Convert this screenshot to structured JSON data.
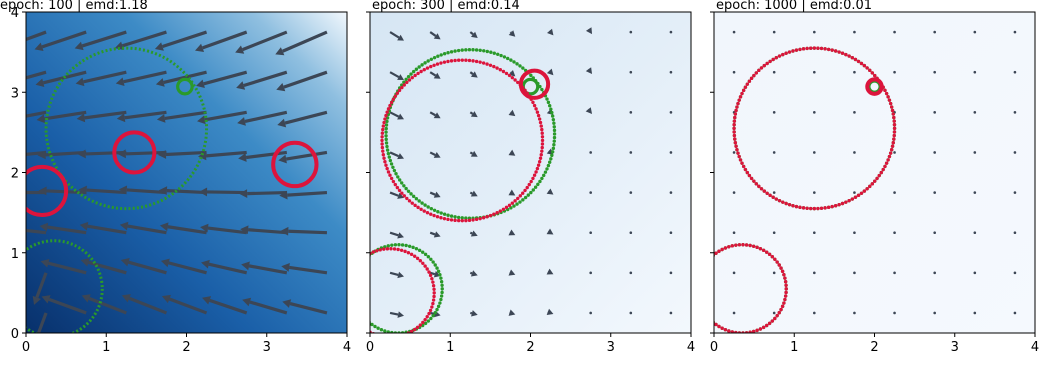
{
  "chart_data": [
    {
      "type": "quiver",
      "title": "epoch: 100 | emd:1.18",
      "xlim": [
        0,
        4
      ],
      "ylim": [
        0,
        4
      ],
      "xticks": [
        "0",
        "1",
        "2",
        "3",
        "4"
      ],
      "yticks": [
        "0",
        "1",
        "2",
        "3",
        "4"
      ],
      "background": "blue gradient (dark lower-left, light upper-right)",
      "circles_green": [
        {
          "cx": 1.25,
          "cy": 2.55,
          "r": 1.0
        },
        {
          "cx": 1.98,
          "cy": 3.07,
          "r": 0.09
        },
        {
          "cx": 0.35,
          "cy": 0.55,
          "r": 0.6
        }
      ],
      "circles_red": [
        {
          "cx": 1.35,
          "cy": 2.25,
          "r": 0.25
        },
        {
          "cx": 3.35,
          "cy": 2.1,
          "r": 0.27
        },
        {
          "cx": 0.2,
          "cy": 1.77,
          "r": 0.3
        }
      ],
      "arrow_scale": "large"
    },
    {
      "type": "quiver",
      "title": "epoch: 300 | emd:0.14",
      "xlim": [
        0,
        4
      ],
      "ylim": [
        0,
        4
      ],
      "xticks": [
        "0",
        "1",
        "2",
        "3",
        "4"
      ],
      "yticks": [],
      "background": "light blue",
      "circles_green": [
        {
          "cx": 1.25,
          "cy": 2.48,
          "r": 1.05
        },
        {
          "cx": 2.0,
          "cy": 3.07,
          "r": 0.09
        },
        {
          "cx": 0.35,
          "cy": 0.55,
          "r": 0.55
        }
      ],
      "circles_red": [
        {
          "cx": 1.15,
          "cy": 2.4,
          "r": 1.0
        },
        {
          "cx": 2.05,
          "cy": 3.1,
          "r": 0.17
        },
        {
          "cx": 0.25,
          "cy": 0.5,
          "r": 0.55
        }
      ],
      "arrow_scale": "medium"
    },
    {
      "type": "quiver",
      "title": "epoch: 1000 | emd:0.01",
      "xlim": [
        0,
        4
      ],
      "ylim": [
        0,
        4
      ],
      "xticks": [
        "0",
        "1",
        "2",
        "3",
        "4"
      ],
      "yticks": [],
      "background": "very light blue",
      "circles_green": [
        {
          "cx": 1.25,
          "cy": 2.55,
          "r": 1.0
        },
        {
          "cx": 2.0,
          "cy": 3.07,
          "r": 0.07
        },
        {
          "cx": 0.35,
          "cy": 0.55,
          "r": 0.55
        }
      ],
      "circles_red": [
        {
          "cx": 1.25,
          "cy": 2.55,
          "r": 1.0
        },
        {
          "cx": 2.0,
          "cy": 3.07,
          "r": 0.09
        },
        {
          "cx": 0.35,
          "cy": 0.55,
          "r": 0.55
        }
      ],
      "arrow_scale": "tiny"
    }
  ],
  "colors": {
    "green": "#2a9a2a",
    "red": "#dc143c",
    "arrow": "#3c4655",
    "dark_blue": "#08306b",
    "light_blue": "#f7fbff"
  }
}
